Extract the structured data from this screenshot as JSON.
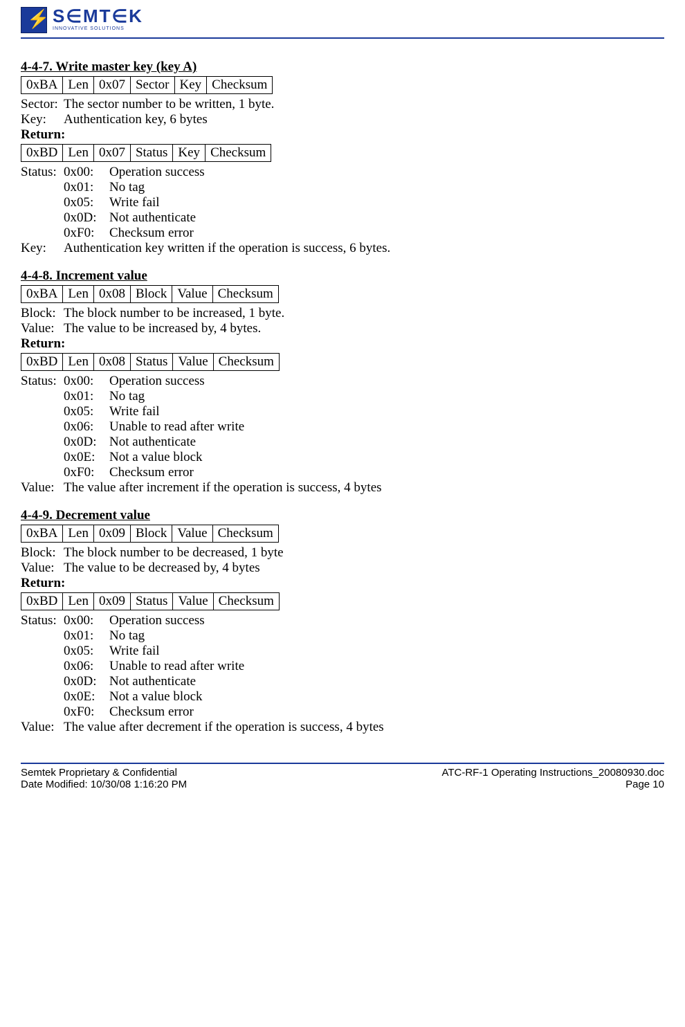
{
  "logo": {
    "main": "S∈MT∈K",
    "sub": "INNOVATIVE SOLUTIONS"
  },
  "sections": [
    {
      "title": "4-4-7. Write master key (key A)",
      "request_packet": [
        "0xBA",
        "Len",
        "0x07",
        "Sector",
        "Key",
        "Checksum"
      ],
      "params": [
        {
          "label": "Sector:",
          "value": "The sector number to be written, 1 byte."
        },
        {
          "label": "Key:",
          "value": "Authentication key, 6 bytes"
        }
      ],
      "return_label": "Return:",
      "return_packet": [
        "0xBD",
        "Len",
        "0x07",
        "Status",
        "Key",
        "Checksum"
      ],
      "status_label": "Status:",
      "status_codes": [
        {
          "code": "0x00:",
          "desc": "Operation success"
        },
        {
          "code": "0x01:",
          "desc": "No tag"
        },
        {
          "code": "0x05:",
          "desc": "Write fail"
        },
        {
          "code": "0x0D:",
          "desc": "Not authenticate"
        },
        {
          "code": "0xF0:",
          "desc": "Checksum error"
        }
      ],
      "tail": [
        {
          "label": "Key:",
          "value": "Authentication key written if the operation is success, 6 bytes."
        }
      ]
    },
    {
      "title": "4-4-8. Increment value",
      "request_packet": [
        "0xBA",
        "Len",
        "0x08",
        "Block",
        "Value",
        "Checksum"
      ],
      "params": [
        {
          "label": "Block:",
          "value": "The block number to be increased, 1 byte."
        },
        {
          "label": "Value:",
          "value": "The value to be increased by, 4 bytes."
        }
      ],
      "return_label": "Return:",
      "return_packet": [
        "0xBD",
        "Len",
        "0x08",
        "Status",
        "Value",
        "Checksum"
      ],
      "status_label": "Status:",
      "status_codes": [
        {
          "code": "0x00:",
          "desc": "Operation success"
        },
        {
          "code": "0x01:",
          "desc": "No tag"
        },
        {
          "code": "0x05:",
          "desc": "Write fail"
        },
        {
          "code": "0x06:",
          "desc": "Unable to read after write"
        },
        {
          "code": "0x0D:",
          "desc": "Not authenticate"
        },
        {
          "code": "0x0E:",
          "desc": "Not a value block"
        },
        {
          "code": "0xF0:",
          "desc": "Checksum error"
        }
      ],
      "tail": [
        {
          "label": "Value:",
          "value": "The value after increment if the operation is success, 4 bytes"
        }
      ]
    },
    {
      "title": "4-4-9. Decrement value",
      "request_packet": [
        "0xBA",
        "Len",
        "0x09",
        "Block",
        "Value",
        "Checksum"
      ],
      "params": [
        {
          "label": "Block:",
          "value": "The block number to be decreased, 1 byte"
        },
        {
          "label": "Value:",
          "value": "The value to be decreased by, 4 bytes"
        }
      ],
      "return_label": "Return:",
      "return_packet": [
        "0xBD",
        "Len",
        "0x09",
        "Status",
        "Value",
        "Checksum"
      ],
      "status_label": "Status:",
      "status_codes": [
        {
          "code": "0x00:",
          "desc": "Operation success"
        },
        {
          "code": "0x01:",
          "desc": "No tag"
        },
        {
          "code": "0x05:",
          "desc": "Write fail"
        },
        {
          "code": "0x06:",
          "desc": "Unable to read after write"
        },
        {
          "code": "0x0D:",
          "desc": "Not authenticate"
        },
        {
          "code": "0x0E:",
          "desc": "Not a value block"
        },
        {
          "code": "0xF0:",
          "desc": "Checksum error"
        }
      ],
      "tail": [
        {
          "label": "Value:",
          "value": "The value after decrement if the operation is success, 4 bytes"
        }
      ]
    }
  ],
  "footer": {
    "left1": "Semtek Proprietary & Confidential",
    "right1": "ATC-RF-1 Operating Instructions_20080930.doc",
    "left2": "Date Modified:  10/30/08 1:16:20 PM",
    "right2": "Page 10"
  }
}
